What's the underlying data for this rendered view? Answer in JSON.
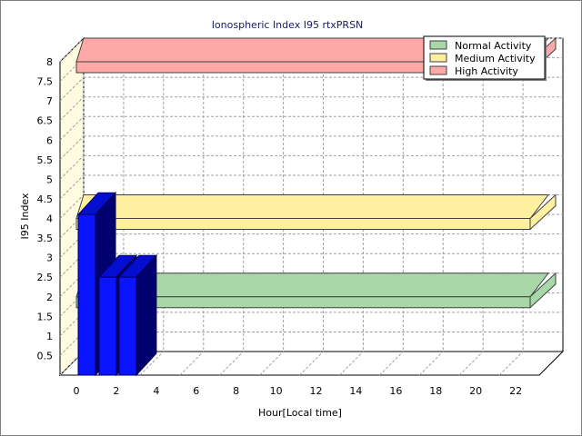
{
  "chart_data": {
    "type": "bar",
    "title": "Ionospheric Index I95 rtxPRSN",
    "xlabel": "Hour[Local time]",
    "ylabel": "I95 Index",
    "xlim": [
      0,
      24
    ],
    "ylim": [
      0,
      8
    ],
    "x_ticks": [
      "0",
      "2",
      "4",
      "6",
      "8",
      "10",
      "12",
      "14",
      "16",
      "18",
      "20",
      "22"
    ],
    "y_ticks": [
      "0.5",
      "1",
      "1.5",
      "2",
      "2.5",
      "3",
      "3.5",
      "4",
      "4.5",
      "5",
      "5.5",
      "6",
      "6.5",
      "7",
      "7.5",
      "8"
    ],
    "grid": true,
    "legend_position": "top-right",
    "series": [
      {
        "x": 0,
        "value": 4.1
      },
      {
        "x": 1,
        "value": 2.5
      },
      {
        "x": 2,
        "value": 2.5
      }
    ],
    "bands": [
      {
        "name": "Normal Activity",
        "value": 2,
        "color": "#a8d8a8"
      },
      {
        "name": "Medium Activity",
        "value": 4,
        "color": "#fff0a0"
      },
      {
        "name": "High Activity",
        "value": 8,
        "color": "#ffa8a8"
      }
    ],
    "bar_color": "#0a14ff"
  }
}
